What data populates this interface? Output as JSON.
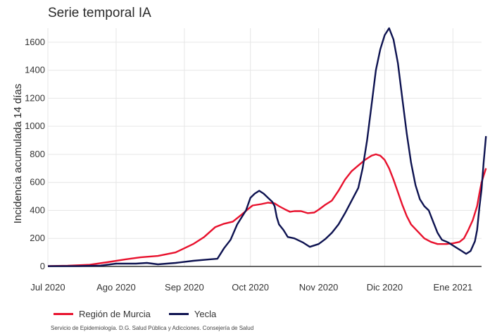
{
  "chart_data": {
    "type": "line",
    "title": "Serie temporal IA",
    "ylabel": "Incidencia acumulada 14 días",
    "xlabel": "",
    "ylim": [
      0,
      1700
    ],
    "yticks": [
      0,
      200,
      400,
      600,
      800,
      1000,
      1200,
      1400,
      1600
    ],
    "xticks": [
      {
        "date": "2020-07-01",
        "label": "Jul 2020"
      },
      {
        "date": "2020-08-01",
        "label": "Ago 2020"
      },
      {
        "date": "2020-09-01",
        "label": "Sep 2020"
      },
      {
        "date": "2020-10-01",
        "label": "Oct 2020"
      },
      {
        "date": "2020-11-01",
        "label": "Nov 2020"
      },
      {
        "date": "2020-12-01",
        "label": "Dic 2020"
      },
      {
        "date": "2021-01-01",
        "label": "Ene 2021"
      }
    ],
    "xlim": [
      "2020-07-01",
      "2021-01-14"
    ],
    "grid": true,
    "legend_position": "bottom-left",
    "series": [
      {
        "name": "Región de Murcia",
        "color": "#e8112d",
        "points": [
          [
            "2020-07-01",
            3
          ],
          [
            "2020-07-10",
            5
          ],
          [
            "2020-07-20",
            12
          ],
          [
            "2020-07-28",
            30
          ],
          [
            "2020-08-05",
            50
          ],
          [
            "2020-08-12",
            65
          ],
          [
            "2020-08-20",
            75
          ],
          [
            "2020-08-28",
            100
          ],
          [
            "2020-09-05",
            160
          ],
          [
            "2020-09-10",
            210
          ],
          [
            "2020-09-15",
            280
          ],
          [
            "2020-09-19",
            305
          ],
          [
            "2020-09-23",
            320
          ],
          [
            "2020-09-27",
            370
          ],
          [
            "2020-09-30",
            410
          ],
          [
            "2020-10-02",
            435
          ],
          [
            "2020-10-06",
            445
          ],
          [
            "2020-10-09",
            455
          ],
          [
            "2020-10-12",
            450
          ],
          [
            "2020-10-14",
            430
          ],
          [
            "2020-10-17",
            405
          ],
          [
            "2020-10-19",
            390
          ],
          [
            "2020-10-21",
            395
          ],
          [
            "2020-10-24",
            395
          ],
          [
            "2020-10-27",
            380
          ],
          [
            "2020-10-30",
            385
          ],
          [
            "2020-11-01",
            405
          ],
          [
            "2020-11-04",
            440
          ],
          [
            "2020-11-07",
            470
          ],
          [
            "2020-11-10",
            540
          ],
          [
            "2020-11-13",
            620
          ],
          [
            "2020-11-16",
            680
          ],
          [
            "2020-11-19",
            720
          ],
          [
            "2020-11-22",
            760
          ],
          [
            "2020-11-25",
            790
          ],
          [
            "2020-11-27",
            800
          ],
          [
            "2020-11-29",
            790
          ],
          [
            "2020-12-01",
            760
          ],
          [
            "2020-12-03",
            700
          ],
          [
            "2020-12-05",
            620
          ],
          [
            "2020-12-07",
            530
          ],
          [
            "2020-12-09",
            440
          ],
          [
            "2020-12-11",
            360
          ],
          [
            "2020-12-13",
            300
          ],
          [
            "2020-12-16",
            250
          ],
          [
            "2020-12-19",
            200
          ],
          [
            "2020-12-22",
            175
          ],
          [
            "2020-12-25",
            160
          ],
          [
            "2020-12-29",
            160
          ],
          [
            "2021-01-01",
            165
          ],
          [
            "2021-01-04",
            175
          ],
          [
            "2021-01-06",
            200
          ],
          [
            "2021-01-08",
            260
          ],
          [
            "2021-01-10",
            330
          ],
          [
            "2021-01-11",
            380
          ],
          [
            "2021-01-12",
            430
          ],
          [
            "2021-01-13",
            520
          ],
          [
            "2021-01-14",
            600
          ],
          [
            "2021-01-15",
            650
          ],
          [
            "2021-01-16",
            700
          ]
        ]
      },
      {
        "name": "Yecla",
        "color": "#0d1250",
        "points": [
          [
            "2020-07-01",
            2
          ],
          [
            "2020-07-15",
            3
          ],
          [
            "2020-07-25",
            6
          ],
          [
            "2020-08-01",
            20
          ],
          [
            "2020-08-10",
            20
          ],
          [
            "2020-08-15",
            25
          ],
          [
            "2020-08-20",
            15
          ],
          [
            "2020-08-28",
            25
          ],
          [
            "2020-09-05",
            40
          ],
          [
            "2020-09-12",
            50
          ],
          [
            "2020-09-16",
            55
          ],
          [
            "2020-09-19",
            130
          ],
          [
            "2020-09-22",
            190
          ],
          [
            "2020-09-25",
            300
          ],
          [
            "2020-09-27",
            350
          ],
          [
            "2020-09-29",
            400
          ],
          [
            "2020-10-01",
            490
          ],
          [
            "2020-10-03",
            520
          ],
          [
            "2020-10-05",
            540
          ],
          [
            "2020-10-07",
            520
          ],
          [
            "2020-10-09",
            490
          ],
          [
            "2020-10-11",
            460
          ],
          [
            "2020-10-12",
            430
          ],
          [
            "2020-10-13",
            350
          ],
          [
            "2020-10-14",
            300
          ],
          [
            "2020-10-16",
            260
          ],
          [
            "2020-10-18",
            210
          ],
          [
            "2020-10-21",
            200
          ],
          [
            "2020-10-25",
            170
          ],
          [
            "2020-10-28",
            140
          ],
          [
            "2020-11-01",
            160
          ],
          [
            "2020-11-04",
            195
          ],
          [
            "2020-11-07",
            240
          ],
          [
            "2020-11-10",
            300
          ],
          [
            "2020-11-13",
            380
          ],
          [
            "2020-11-16",
            470
          ],
          [
            "2020-11-19",
            560
          ],
          [
            "2020-11-21",
            700
          ],
          [
            "2020-11-23",
            900
          ],
          [
            "2020-11-25",
            1150
          ],
          [
            "2020-11-27",
            1400
          ],
          [
            "2020-11-29",
            1550
          ],
          [
            "2020-12-01",
            1650
          ],
          [
            "2020-12-03",
            1700
          ],
          [
            "2020-12-05",
            1620
          ],
          [
            "2020-12-07",
            1450
          ],
          [
            "2020-12-09",
            1200
          ],
          [
            "2020-12-11",
            950
          ],
          [
            "2020-12-13",
            740
          ],
          [
            "2020-12-15",
            580
          ],
          [
            "2020-12-17",
            480
          ],
          [
            "2020-12-19",
            430
          ],
          [
            "2020-12-21",
            400
          ],
          [
            "2020-12-23",
            320
          ],
          [
            "2020-12-25",
            240
          ],
          [
            "2020-12-27",
            190
          ],
          [
            "2020-12-30",
            170
          ],
          [
            "2021-01-02",
            140
          ],
          [
            "2021-01-05",
            110
          ],
          [
            "2021-01-07",
            90
          ],
          [
            "2021-01-09",
            110
          ],
          [
            "2021-01-11",
            180
          ],
          [
            "2021-01-12",
            260
          ],
          [
            "2021-01-13",
            420
          ],
          [
            "2021-01-14",
            550
          ],
          [
            "2021-01-15",
            750
          ],
          [
            "2021-01-16",
            930
          ]
        ]
      }
    ]
  },
  "footer": {
    "source": "Servicio de Epidemiología. D.G. Salud Pública y Adicciones. Consejería de Salud"
  }
}
